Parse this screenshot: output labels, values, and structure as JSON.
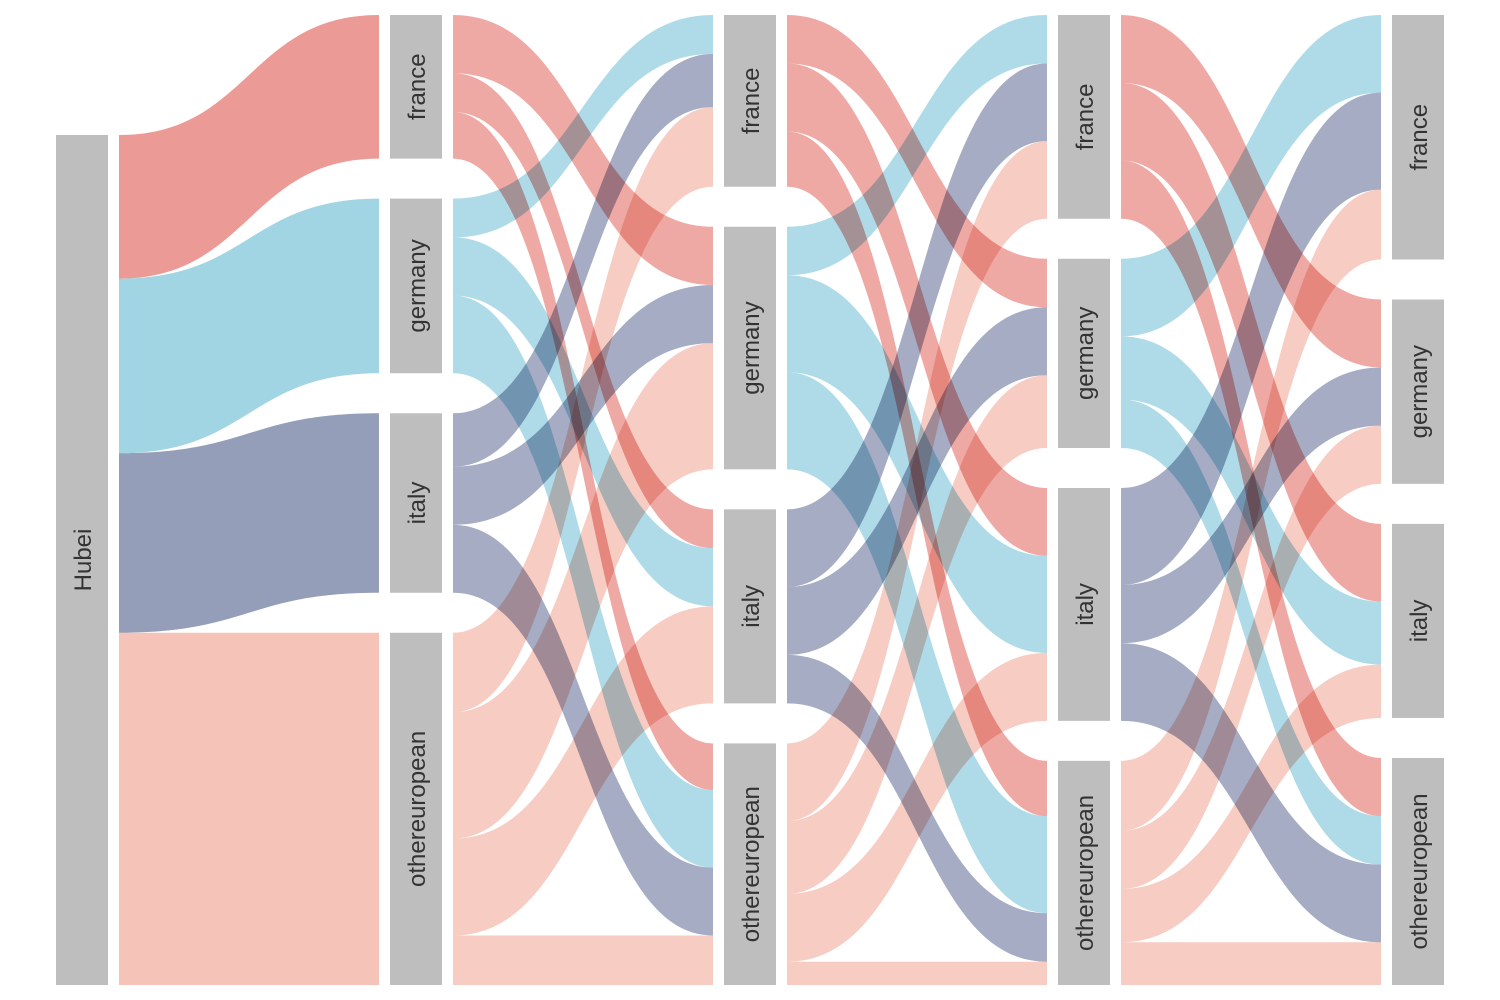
{
  "colors": {
    "node": "#bebebe",
    "france": "#ec9a95",
    "germany": "#a1d5e4",
    "italy": "#959eb9",
    "othereuropean": "#f5c3b8"
  },
  "diagram": {
    "type": "alluvial",
    "stages": [
      {
        "nodes": [
          {
            "key": "Hubei",
            "label": "Hubei"
          }
        ]
      },
      {
        "nodes": [
          {
            "key": "france",
            "label": "france"
          },
          {
            "key": "germany",
            "label": "germany"
          },
          {
            "key": "italy",
            "label": "italy"
          },
          {
            "key": "othereuropean",
            "label": "othereuropean"
          }
        ]
      },
      {
        "nodes": [
          {
            "key": "france",
            "label": "france"
          },
          {
            "key": "germany",
            "label": "germany"
          },
          {
            "key": "italy",
            "label": "italy"
          },
          {
            "key": "othereuropean",
            "label": "othereuropean"
          }
        ]
      },
      {
        "nodes": [
          {
            "key": "france",
            "label": "france"
          },
          {
            "key": "germany",
            "label": "germany"
          },
          {
            "key": "italy",
            "label": "italy"
          },
          {
            "key": "othereuropean",
            "label": "othereuropean"
          }
        ]
      },
      {
        "nodes": [
          {
            "key": "france",
            "label": "france"
          },
          {
            "key": "germany",
            "label": "germany"
          },
          {
            "key": "italy",
            "label": "italy"
          },
          {
            "key": "othereuropean",
            "label": "othereuropean"
          }
        ]
      }
    ],
    "flows": [
      [
        {
          "from": "Hubei",
          "to": "france",
          "value": 148
        },
        {
          "from": "Hubei",
          "to": "germany",
          "value": 180
        },
        {
          "from": "Hubei",
          "to": "italy",
          "value": 185
        },
        {
          "from": "Hubei",
          "to": "othereuropean",
          "value": 363
        }
      ],
      [
        {
          "from": "france",
          "to": "france",
          "value": 0
        },
        {
          "from": "france",
          "to": "germany",
          "value": 60
        },
        {
          "from": "france",
          "to": "italy",
          "value": 40
        },
        {
          "from": "france",
          "to": "othereuropean",
          "value": 48
        },
        {
          "from": "germany",
          "to": "france",
          "value": 40
        },
        {
          "from": "germany",
          "to": "germany",
          "value": 0
        },
        {
          "from": "germany",
          "to": "italy",
          "value": 60
        },
        {
          "from": "germany",
          "to": "othereuropean",
          "value": 80
        },
        {
          "from": "italy",
          "to": "france",
          "value": 55
        },
        {
          "from": "italy",
          "to": "germany",
          "value": 60
        },
        {
          "from": "italy",
          "to": "italy",
          "value": 0
        },
        {
          "from": "italy",
          "to": "othereuropean",
          "value": 70
        },
        {
          "from": "othereuropean",
          "to": "france",
          "value": 82
        },
        {
          "from": "othereuropean",
          "to": "germany",
          "value": 130
        },
        {
          "from": "othereuropean",
          "to": "italy",
          "value": 100
        },
        {
          "from": "othereuropean",
          "to": "othereuropean",
          "value": 51
        }
      ],
      [
        {
          "from": "france",
          "to": "france",
          "value": 0
        },
        {
          "from": "france",
          "to": "germany",
          "value": 50
        },
        {
          "from": "france",
          "to": "italy",
          "value": 70
        },
        {
          "from": "france",
          "to": "othereuropean",
          "value": 57
        },
        {
          "from": "germany",
          "to": "france",
          "value": 50
        },
        {
          "from": "germany",
          "to": "germany",
          "value": 0
        },
        {
          "from": "germany",
          "to": "italy",
          "value": 100
        },
        {
          "from": "germany",
          "to": "othereuropean",
          "value": 100
        },
        {
          "from": "italy",
          "to": "france",
          "value": 80
        },
        {
          "from": "italy",
          "to": "germany",
          "value": 70
        },
        {
          "from": "italy",
          "to": "italy",
          "value": 0
        },
        {
          "from": "italy",
          "to": "othereuropean",
          "value": 50
        },
        {
          "from": "othereuropean",
          "to": "france",
          "value": 80
        },
        {
          "from": "othereuropean",
          "to": "germany",
          "value": 75
        },
        {
          "from": "othereuropean",
          "to": "italy",
          "value": 70
        },
        {
          "from": "othereuropean",
          "to": "othereuropean",
          "value": 24
        }
      ],
      [
        {
          "from": "france",
          "to": "france",
          "value": 0
        },
        {
          "from": "france",
          "to": "germany",
          "value": 70
        },
        {
          "from": "france",
          "to": "italy",
          "value": 80
        },
        {
          "from": "france",
          "to": "othereuropean",
          "value": 60
        },
        {
          "from": "germany",
          "to": "france",
          "value": 80
        },
        {
          "from": "germany",
          "to": "germany",
          "value": 0
        },
        {
          "from": "germany",
          "to": "italy",
          "value": 65
        },
        {
          "from": "germany",
          "to": "othereuropean",
          "value": 50
        },
        {
          "from": "italy",
          "to": "france",
          "value": 100
        },
        {
          "from": "italy",
          "to": "germany",
          "value": 60
        },
        {
          "from": "italy",
          "to": "italy",
          "value": 0
        },
        {
          "from": "italy",
          "to": "othereuropean",
          "value": 80
        },
        {
          "from": "othereuropean",
          "to": "france",
          "value": 72
        },
        {
          "from": "othereuropean",
          "to": "germany",
          "value": 60
        },
        {
          "from": "othereuropean",
          "to": "italy",
          "value": 55
        },
        {
          "from": "othereuropean",
          "to": "othereuropean",
          "value": 44
        }
      ]
    ]
  }
}
